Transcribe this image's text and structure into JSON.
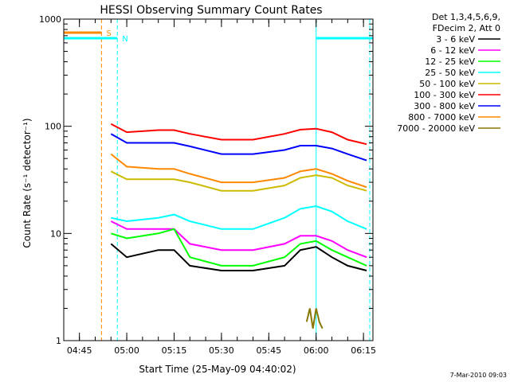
{
  "chart_data": {
    "type": "line",
    "title": "HESSI Observing Summary Count Rates",
    "xlabel": "Start Time (25-May-09 04:40:02)",
    "ylabel": "Count Rate (s⁻¹ detector⁻¹)",
    "y_scale": "log",
    "ylim": [
      1,
      1000
    ],
    "y_ticks": [
      {
        "value": 1,
        "label": "1"
      },
      {
        "value": 10,
        "label": "10"
      },
      {
        "value": 100,
        "label": "100"
      },
      {
        "value": 1000,
        "label": "1000"
      }
    ],
    "x_range": [
      "04:40:02",
      "06:18:00"
    ],
    "x_ticks": [
      "04:45",
      "05:00",
      "05:15",
      "05:30",
      "05:45",
      "06:00",
      "06:15"
    ],
    "grid": false,
    "legend_position": "right, outside plot",
    "legend_header": [
      "Det 1,3,4,5,6,9,",
      "FDecim 2, Att 0"
    ],
    "series": [
      {
        "name": "3 - 6 keV",
        "color": "#000000",
        "x": [
          "04:55",
          "05:00",
          "05:10",
          "05:15",
          "05:20",
          "05:30",
          "05:40",
          "05:50",
          "05:55",
          "06:00",
          "06:05",
          "06:10",
          "06:16"
        ],
        "values": [
          8,
          6,
          7,
          7,
          5,
          4.5,
          4.5,
          5,
          7,
          7.5,
          6,
          5,
          4.5
        ]
      },
      {
        "name": "6 - 12 keV",
        "color": "#ff00ff",
        "x": [
          "04:55",
          "05:00",
          "05:10",
          "05:15",
          "05:20",
          "05:30",
          "05:40",
          "05:50",
          "05:55",
          "06:00",
          "06:05",
          "06:10",
          "06:16"
        ],
        "values": [
          13,
          11,
          11,
          11,
          8,
          7,
          7,
          8,
          9.5,
          9.5,
          8.5,
          7,
          6
        ]
      },
      {
        "name": "12 - 25 keV",
        "color": "#00ff00",
        "x": [
          "04:55",
          "05:00",
          "05:10",
          "05:15",
          "05:20",
          "05:30",
          "05:40",
          "05:50",
          "05:55",
          "06:00",
          "06:05",
          "06:10",
          "06:16"
        ],
        "values": [
          10,
          9,
          10,
          11,
          6,
          5,
          5,
          6,
          8,
          8.5,
          7,
          6,
          5
        ]
      },
      {
        "name": "25 - 50 keV",
        "color": "#00ffff",
        "x": [
          "04:55",
          "05:00",
          "05:10",
          "05:15",
          "05:20",
          "05:30",
          "05:40",
          "05:50",
          "05:55",
          "06:00",
          "06:05",
          "06:10",
          "06:16"
        ],
        "values": [
          14,
          13,
          14,
          15,
          13,
          11,
          11,
          14,
          17,
          18,
          16,
          13,
          11
        ]
      },
      {
        "name": "50 - 100 keV",
        "color": "#ccbb00",
        "x": [
          "04:55",
          "05:00",
          "05:10",
          "05:15",
          "05:20",
          "05:30",
          "05:40",
          "05:50",
          "05:55",
          "06:00",
          "06:05",
          "06:10",
          "06:16"
        ],
        "values": [
          38,
          32,
          32,
          32,
          30,
          25,
          25,
          28,
          33,
          35,
          33,
          28,
          25
        ]
      },
      {
        "name": "100 - 300 keV",
        "color": "#ff0000",
        "x": [
          "04:55",
          "05:00",
          "05:10",
          "05:15",
          "05:20",
          "05:30",
          "05:40",
          "05:50",
          "05:55",
          "06:00",
          "06:05",
          "06:10",
          "06:16"
        ],
        "values": [
          105,
          88,
          92,
          92,
          85,
          75,
          75,
          85,
          93,
          95,
          88,
          75,
          68
        ]
      },
      {
        "name": "300 - 800 keV",
        "color": "#0000ff",
        "x": [
          "04:55",
          "05:00",
          "05:10",
          "05:15",
          "05:20",
          "05:30",
          "05:40",
          "05:50",
          "05:55",
          "06:00",
          "06:05",
          "06:10",
          "06:16"
        ],
        "values": [
          85,
          70,
          70,
          70,
          65,
          55,
          55,
          60,
          66,
          66,
          62,
          55,
          48
        ]
      },
      {
        "name": "800 - 7000 keV",
        "color": "#ff8800",
        "x": [
          "04:55",
          "05:00",
          "05:10",
          "05:15",
          "05:20",
          "05:30",
          "05:40",
          "05:50",
          "05:55",
          "06:00",
          "06:05",
          "06:10",
          "06:16"
        ],
        "values": [
          55,
          42,
          40,
          40,
          36,
          30,
          30,
          33,
          38,
          40,
          36,
          31,
          27
        ]
      },
      {
        "name": "7000 - 20000 keV",
        "color": "#887700",
        "x": [
          "05:57",
          "05:58",
          "05:59",
          "06:00",
          "06:01",
          "06:02"
        ],
        "values": [
          1.5,
          2,
          1.3,
          2,
          1.5,
          1.3
        ]
      }
    ],
    "annotations": [
      {
        "label": "S",
        "color": "#ff8800",
        "x_start": "04:40:02",
        "x_end": "04:52"
      },
      {
        "label": "N",
        "color": "#00ffff",
        "x_start": "04:40:02",
        "x_end": "04:57"
      },
      {
        "label": "",
        "color": "#00ffff",
        "x_start": "06:00",
        "x_end": "06:18"
      }
    ],
    "timestamp": "7-Mar-2010 09:03"
  }
}
